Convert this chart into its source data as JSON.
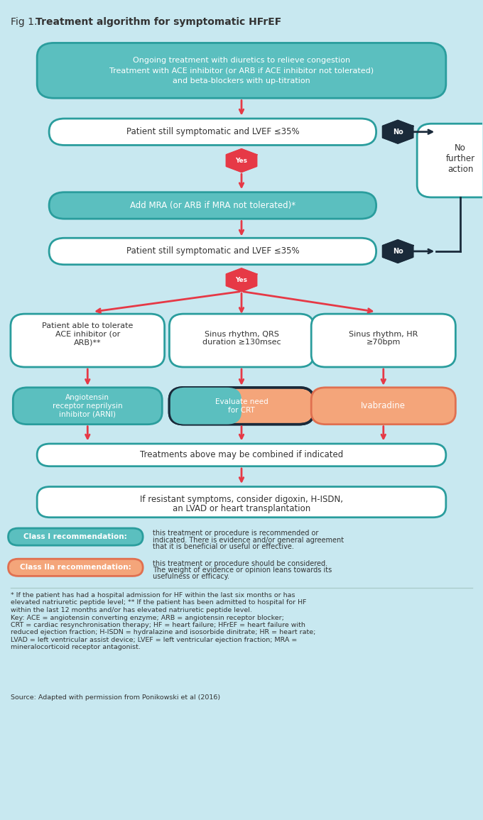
{
  "title": "Fig 1. Treatment algorithm for symptomatic HFrEF",
  "title_bold_part": "Treatment algorithm for symptomatic HFrEF",
  "title_normal_part": "Fig 1. ",
  "bg_color": "#c8e8f0",
  "teal_fill": "#5bbfbf",
  "teal_border": "#2a9d9d",
  "white_fill": "#ffffff",
  "dark_navy": "#1a2a3a",
  "red_hex": "#e63946",
  "orange_fill": "#f4a57a",
  "orange_border": "#e07050",
  "dark_teal_fill": "#3a8a8a",
  "legend_teal_fill": "#5bbfbf",
  "legend_orange_fill": "#f4a57a",
  "text_dark": "#333333",
  "text_white": "#ffffff",
  "source_text": "Source: Adapted with permission from Ponikowski et al (2016)"
}
